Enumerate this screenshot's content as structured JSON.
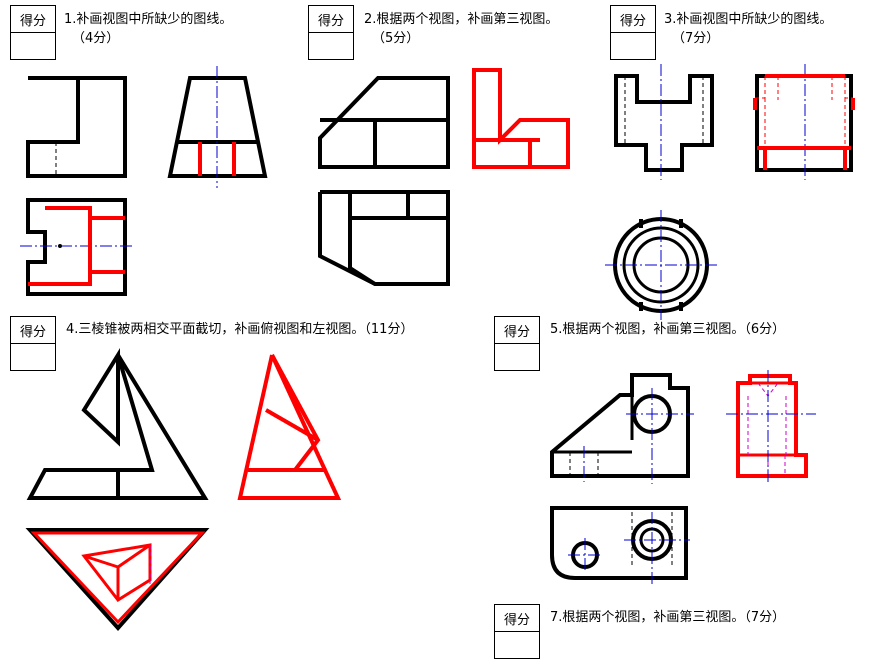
{
  "score_label": "得分",
  "questions": [
    {
      "id": "q1",
      "text": "1.补画视图中所缺少的图线。",
      "points": "（4分）"
    },
    {
      "id": "q2",
      "text": "2.根据两个视图，补画第三视图。",
      "points": "（5分）"
    },
    {
      "id": "q3",
      "text": "3.补画视图中所缺少的图线。",
      "points": "（7分）"
    },
    {
      "id": "q4",
      "text": "4.三棱锥被两相交平面截切，补画俯视图和左视图。（11分）",
      "points": ""
    },
    {
      "id": "q5",
      "text": "5.根据两个视图，补画第三视图。（6分）",
      "points": ""
    },
    {
      "id": "q7",
      "text": "7.根据两个视图，补画第三视图。（7分）",
      "points": ""
    }
  ],
  "colors": {
    "outline": "#000000",
    "answer": "#ff0000",
    "centerline": "#0000cc",
    "hidden_answer": "#cc00cc"
  }
}
